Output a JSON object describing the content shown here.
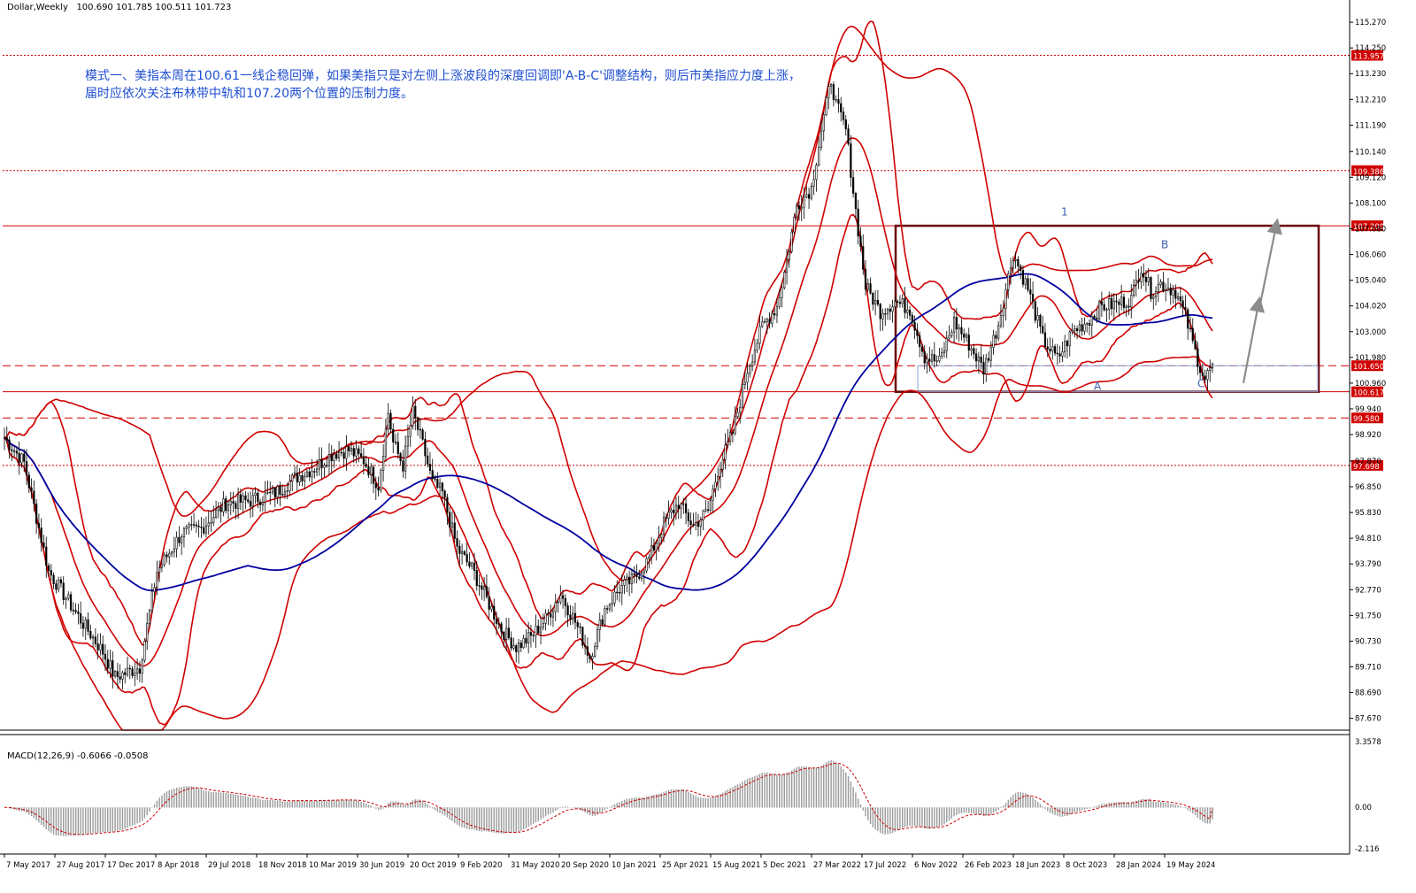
{
  "chart": {
    "symbol_header": "Dollar,Weekly",
    "ohlc_header": "100.690 101.785 100.511 101.723",
    "macd_header": "MACD(12,26,9) -0.6066 -0.0508",
    "annotation_lines": [
      "模式一、美指本周在100.61一线企稳回弹，如果美指只是对左侧上涨波段的深度回调即'A-B-C'调整结构，则后市美指应力度上涨，",
      "届时应依次关注布林带中轨和107.20两个位置的压制力度。"
    ],
    "wave_labels": [
      "1",
      "A",
      "B",
      "C"
    ]
  },
  "chart_data": [
    {
      "type": "candlestick",
      "title": "Dollar,Weekly",
      "ohlc_last": {
        "open": 100.69,
        "high": 101.785,
        "low": 100.511,
        "close": 101.723
      },
      "x_tick_labels": [
        "7 May 2017",
        "27 Aug 2017",
        "17 Dec 2017",
        "8 Apr 2018",
        "29 Jul 2018",
        "18 Nov 2018",
        "10 Mar 2019",
        "30 Jun 2019",
        "20 Oct 2019",
        "9 Feb 2020",
        "31 May 2020",
        "20 Sep 2020",
        "10 Jan 2021",
        "25 Apr 2021",
        "15 Aug 2021",
        "5 Dec 2021",
        "27 Mar 2022",
        "17 Jul 2022",
        "6 Nov 2022",
        "26 Feb 2023",
        "18 Jun 2023",
        "8 Oct 2023",
        "28 Jan 2024",
        "19 May 2024"
      ],
      "y_tick_labels": [
        "115.270",
        "114.250",
        "113.230",
        "112.210",
        "111.190",
        "110.140",
        "109.120",
        "108.100",
        "107.080",
        "106.060",
        "105.040",
        "104.020",
        "103.000",
        "101.980",
        "100.960",
        "99.940",
        "98.920",
        "97.870",
        "96.850",
        "95.830",
        "94.810",
        "93.790",
        "92.770",
        "91.750",
        "90.730",
        "89.710",
        "88.690",
        "87.670"
      ],
      "ylim": [
        87.2,
        115.8
      ],
      "price_levels": [
        {
          "value": 113.957,
          "label": "113.957",
          "style": "dotted"
        },
        {
          "value": 109.386,
          "label": "109.386",
          "style": "dotted"
        },
        {
          "value": 107.2,
          "label": "107.200",
          "style": "solid"
        },
        {
          "value": 101.65,
          "label": "101.650",
          "style": "dashed"
        },
        {
          "value": 100.617,
          "label": "100.617",
          "style": "solid"
        },
        {
          "value": 99.58,
          "label": "99.580",
          "style": "dashed"
        },
        {
          "value": 97.698,
          "label": "97.698",
          "style": "dotted"
        }
      ],
      "closes_weekly_approx": [
        [
          0,
          98.8
        ],
        [
          8,
          97.8
        ],
        [
          18,
          93.5
        ],
        [
          28,
          92.0
        ],
        [
          40,
          90.3
        ],
        [
          45,
          89.3
        ],
        [
          55,
          89.7
        ],
        [
          62,
          93.5
        ],
        [
          72,
          95.0
        ],
        [
          80,
          95.2
        ],
        [
          90,
          96.2
        ],
        [
          100,
          96.3
        ],
        [
          110,
          96.6
        ],
        [
          118,
          97.2
        ],
        [
          126,
          97.6
        ],
        [
          134,
          98.2
        ],
        [
          140,
          98.3
        ],
        [
          146,
          97.9
        ],
        [
          152,
          96.9
        ],
        [
          156,
          99.8
        ],
        [
          158,
          98.6
        ],
        [
          162,
          97.7
        ],
        [
          166,
          99.8
        ],
        [
          170,
          98.5
        ],
        [
          174,
          97.0
        ],
        [
          178,
          96.6
        ],
        [
          184,
          94.4
        ],
        [
          190,
          93.6
        ],
        [
          196,
          92.4
        ],
        [
          202,
          91.2
        ],
        [
          208,
          90.5
        ],
        [
          214,
          90.9
        ],
        [
          220,
          91.6
        ],
        [
          226,
          92.6
        ],
        [
          232,
          91.5
        ],
        [
          238,
          90.1
        ],
        [
          244,
          92.0
        ],
        [
          250,
          92.8
        ],
        [
          256,
          93.2
        ],
        [
          262,
          94.0
        ],
        [
          268,
          95.4
        ],
        [
          274,
          96.2
        ],
        [
          280,
          95.3
        ],
        [
          286,
          95.9
        ],
        [
          290,
          97.5
        ],
        [
          296,
          99.0
        ],
        [
          302,
          101.5
        ],
        [
          308,
          103.2
        ],
        [
          314,
          104.0
        ],
        [
          318,
          105.8
        ],
        [
          322,
          108.0
        ],
        [
          328,
          108.7
        ],
        [
          332,
          111.0
        ],
        [
          336,
          113.0
        ],
        [
          338,
          112.0
        ],
        [
          342,
          111.0
        ],
        [
          346,
          107.8
        ],
        [
          350,
          104.8
        ],
        [
          356,
          103.8
        ],
        [
          362,
          104.2
        ],
        [
          368,
          103.9
        ],
        [
          374,
          102.0
        ],
        [
          380,
          101.8
        ],
        [
          386,
          103.4
        ],
        [
          392,
          102.5
        ],
        [
          398,
          101.5
        ],
        [
          404,
          103.3
        ],
        [
          410,
          106.1
        ],
        [
          416,
          104.7
        ],
        [
          422,
          102.7
        ],
        [
          428,
          101.9
        ],
        [
          434,
          103.0
        ],
        [
          440,
          103.4
        ],
        [
          446,
          104.0
        ],
        [
          452,
          104.1
        ],
        [
          458,
          104.3
        ],
        [
          462,
          105.6
        ],
        [
          466,
          104.6
        ],
        [
          470,
          104.9
        ],
        [
          476,
          104.6
        ],
        [
          480,
          103.6
        ],
        [
          484,
          102.2
        ],
        [
          486,
          101.6
        ],
        [
          488,
          101.1
        ],
        [
          491,
          101.723
        ]
      ],
      "series": [
        {
          "name": "",
          "color": "#000000",
          "role": "candles"
        },
        {
          "name": "",
          "color": "#d00000",
          "role": "bollinger bands (inner and outer)"
        },
        {
          "name": "",
          "color": "#0000a0",
          "role": "long-period moving average"
        }
      ],
      "box": {
        "top": 107.2,
        "bottom": 100.617,
        "color": "#6b0000"
      },
      "arrow_targets": [
        104.1,
        107.2
      ],
      "grid": false
    },
    {
      "type": "bar",
      "title": "MACD(12,26,9) -0.6066 -0.0508",
      "ylim": [
        -2.116,
        3.3578
      ],
      "y_tick_labels": [
        "3.3578",
        "0.00",
        "-2.116"
      ],
      "macd_last": -0.6066,
      "signal_last": -0.0508,
      "series": [
        {
          "name": "",
          "color": "#9a9a9a",
          "role": "histogram"
        },
        {
          "name": "",
          "color": "#d00000",
          "role": "signal (dotted)"
        }
      ]
    }
  ]
}
